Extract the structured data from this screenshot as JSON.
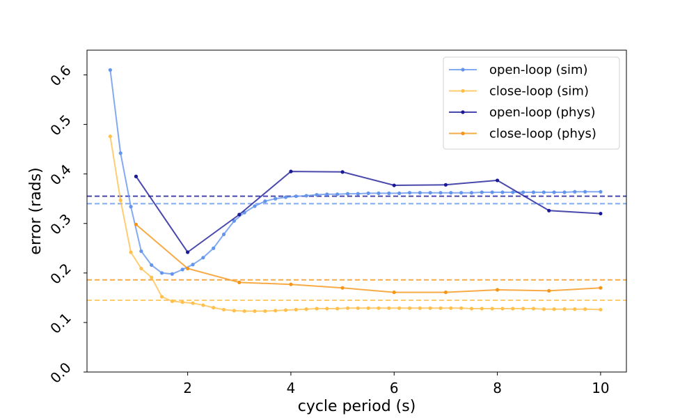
{
  "chart_data": {
    "type": "line",
    "xlabel": "cycle period (s)",
    "ylabel": "error (rads)",
    "xlim": [
      0.05,
      10.5
    ],
    "ylim": [
      0.0,
      0.65
    ],
    "xticks": [
      2,
      4,
      6,
      8,
      10
    ],
    "xtick_labels": [
      "2",
      "4",
      "6",
      "8",
      "10"
    ],
    "yticks": [
      0.0,
      0.1,
      0.2,
      0.3,
      0.4,
      0.5,
      0.6
    ],
    "ytick_labels": [
      "0.0",
      "0.1",
      "0.2",
      "0.3",
      "0.4",
      "0.5",
      "0.6"
    ],
    "grid": false,
    "legend_position": "top-right",
    "series": [
      {
        "name": "open-loop (sim)",
        "color": "#6495ed",
        "x": [
          0.5,
          0.7,
          0.9,
          1.1,
          1.3,
          1.5,
          1.7,
          1.9,
          2.1,
          2.3,
          2.5,
          2.7,
          2.9,
          3.1,
          3.3,
          3.5,
          3.7,
          3.9,
          4.1,
          4.3,
          4.5,
          4.7,
          4.9,
          5.1,
          5.3,
          5.5,
          5.7,
          5.9,
          6.1,
          6.3,
          6.5,
          6.7,
          6.9,
          7.1,
          7.3,
          7.5,
          7.7,
          7.9,
          8.1,
          8.3,
          8.5,
          8.7,
          8.9,
          9.1,
          9.3,
          9.5,
          9.7,
          10.0
        ],
        "values": [
          0.61,
          0.442,
          0.334,
          0.244,
          0.216,
          0.2,
          0.198,
          0.207,
          0.217,
          0.231,
          0.25,
          0.278,
          0.305,
          0.322,
          0.335,
          0.345,
          0.35,
          0.353,
          0.355,
          0.356,
          0.358,
          0.359,
          0.359,
          0.36,
          0.36,
          0.361,
          0.361,
          0.361,
          0.361,
          0.362,
          0.362,
          0.362,
          0.362,
          0.362,
          0.362,
          0.362,
          0.363,
          0.363,
          0.363,
          0.363,
          0.363,
          0.363,
          0.363,
          0.363,
          0.363,
          0.364,
          0.364,
          0.364
        ],
        "mean": 0.34
      },
      {
        "name": "close-loop (sim)",
        "color": "#ffc04d",
        "x": [
          0.5,
          0.7,
          0.9,
          1.1,
          1.3,
          1.5,
          1.7,
          1.9,
          2.1,
          2.3,
          2.5,
          2.7,
          2.9,
          3.1,
          3.3,
          3.5,
          3.7,
          3.9,
          4.1,
          4.3,
          4.5,
          4.7,
          4.9,
          5.1,
          5.3,
          5.5,
          5.7,
          5.9,
          6.1,
          6.3,
          6.5,
          6.7,
          6.9,
          7.1,
          7.3,
          7.5,
          7.7,
          7.9,
          8.1,
          8.3,
          8.5,
          8.7,
          8.9,
          9.1,
          9.3,
          9.5,
          9.7,
          10.0
        ],
        "values": [
          0.476,
          0.347,
          0.242,
          0.209,
          0.191,
          0.152,
          0.143,
          0.141,
          0.139,
          0.135,
          0.13,
          0.126,
          0.124,
          0.123,
          0.123,
          0.123,
          0.124,
          0.125,
          0.126,
          0.127,
          0.128,
          0.128,
          0.128,
          0.129,
          0.129,
          0.129,
          0.129,
          0.129,
          0.129,
          0.129,
          0.129,
          0.129,
          0.129,
          0.129,
          0.129,
          0.128,
          0.128,
          0.128,
          0.128,
          0.128,
          0.128,
          0.128,
          0.127,
          0.127,
          0.127,
          0.127,
          0.127,
          0.126
        ],
        "mean": 0.145
      },
      {
        "name": "open-loop (phys)",
        "color": "#1a1a99",
        "x": [
          1,
          2,
          3,
          4,
          5,
          6,
          7,
          8,
          9,
          10
        ],
        "values": [
          0.395,
          0.242,
          0.318,
          0.405,
          0.404,
          0.377,
          0.378,
          0.387,
          0.326,
          0.32
        ],
        "mean": 0.355
      },
      {
        "name": "close-loop (phys)",
        "color": "#f59518",
        "x": [
          1,
          2,
          3,
          4,
          5,
          6,
          7,
          8,
          9,
          10
        ],
        "values": [
          0.298,
          0.209,
          0.181,
          0.177,
          0.17,
          0.161,
          0.161,
          0.166,
          0.164,
          0.17
        ],
        "mean": 0.186
      }
    ]
  }
}
